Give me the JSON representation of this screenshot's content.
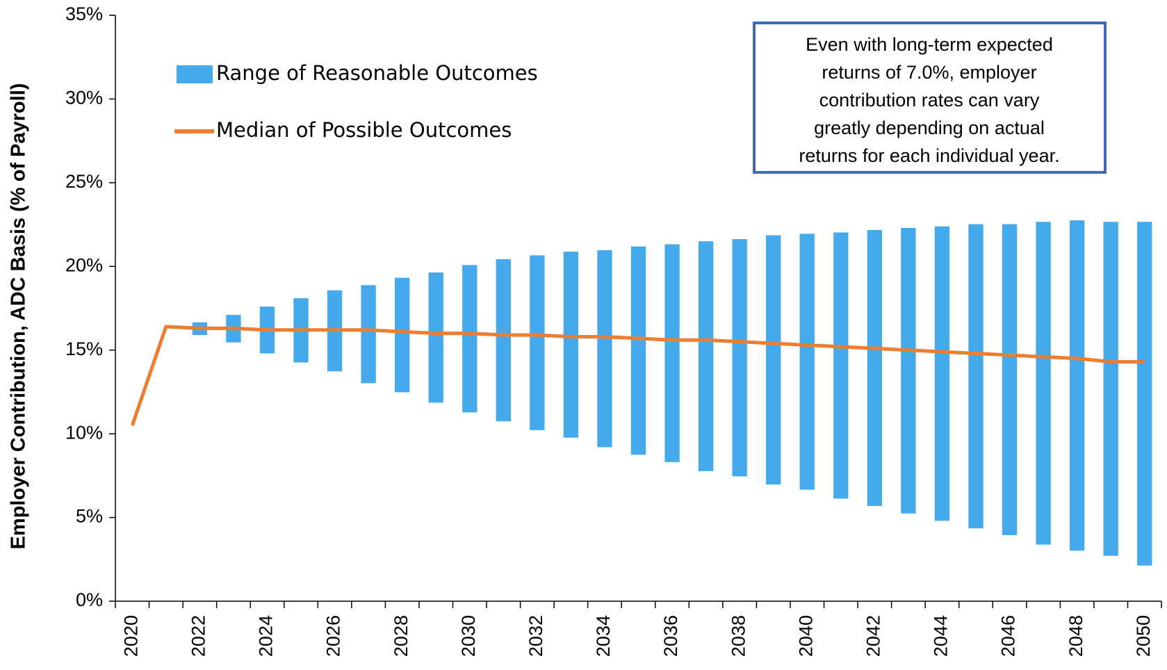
{
  "chart_data": {
    "type": "range-bar-line",
    "y_label": "Employer Contribution, ADC Basis (% of Payroll)",
    "annotation": [
      "Even with long-term expected",
      "returns of 7.0%, employer",
      "contribution rates can vary",
      "greatly depending on actual",
      "returns for each individual year."
    ],
    "categories": [
      "2020",
      null,
      "2022",
      null,
      "2024",
      null,
      "2026",
      null,
      "2028",
      null,
      "2030",
      null,
      "2032",
      null,
      "2034",
      null,
      "2036",
      null,
      "2038",
      null,
      "2040",
      null,
      "2042",
      null,
      "2044",
      null,
      "2046",
      null,
      "2048",
      null,
      "2050"
    ],
    "series": [
      {
        "name": "Range of Reasonable Outcomes",
        "type": "range",
        "color": "#45aaeb",
        "low": [
          null,
          null,
          15.9,
          15.46,
          14.8,
          14.26,
          13.73,
          13.02,
          12.48,
          11.86,
          11.28,
          10.75,
          10.22,
          9.77,
          9.2,
          8.75,
          8.31,
          7.77,
          7.46,
          6.97,
          6.66,
          6.13,
          5.69,
          5.24,
          4.8,
          4.35,
          3.95,
          3.38,
          3.02,
          2.71,
          2.13
        ],
        "high": [
          null,
          null,
          16.66,
          17.1,
          17.6,
          18.1,
          18.57,
          18.88,
          19.32,
          19.64,
          20.08,
          20.43,
          20.66,
          20.88,
          20.97,
          21.19,
          21.32,
          21.5,
          21.63,
          21.86,
          21.95,
          22.03,
          22.17,
          22.3,
          22.39,
          22.52,
          22.52,
          22.66,
          22.75,
          22.66,
          22.66
        ]
      },
      {
        "name": "Median of Possible Outcomes",
        "type": "line",
        "color": "#ed7d31",
        "values": [
          10.5,
          16.4,
          16.3,
          16.3,
          16.2,
          16.2,
          16.2,
          16.2,
          16.1,
          16.0,
          16.0,
          15.9,
          15.9,
          15.8,
          15.8,
          15.7,
          15.6,
          15.6,
          15.5,
          15.4,
          15.3,
          15.2,
          15.1,
          15.0,
          14.9,
          14.8,
          14.7,
          14.6,
          14.5,
          14.3,
          14.3
        ]
      }
    ],
    "ylim": [
      0,
      35
    ],
    "yticks": [
      {
        "value": 0,
        "label": "0%"
      },
      {
        "value": 5,
        "label": "5%"
      },
      {
        "value": 10,
        "label": "10%"
      },
      {
        "value": 15,
        "label": "15%"
      },
      {
        "value": 20,
        "label": "20%"
      },
      {
        "value": 25,
        "label": "25%"
      },
      {
        "value": 30,
        "label": "30%"
      },
      {
        "value": 35,
        "label": "35%"
      }
    ]
  }
}
